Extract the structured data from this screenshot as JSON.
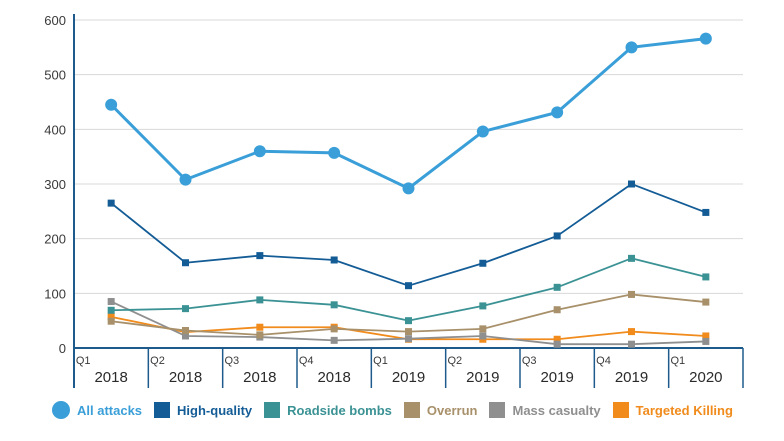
{
  "chart_data": {
    "type": "line",
    "categories": [
      {
        "quarter": "Q1",
        "year": "2018"
      },
      {
        "quarter": "Q2",
        "year": "2018"
      },
      {
        "quarter": "Q3",
        "year": "2018"
      },
      {
        "quarter": "Q4",
        "year": "2018"
      },
      {
        "quarter": "Q1",
        "year": "2019"
      },
      {
        "quarter": "Q2",
        "year": "2019"
      },
      {
        "quarter": "Q3",
        "year": "2019"
      },
      {
        "quarter": "Q4",
        "year": "2019"
      },
      {
        "quarter": "Q1",
        "year": "2020"
      }
    ],
    "yticks": [
      0,
      100,
      200,
      300,
      400,
      500,
      600
    ],
    "ylim": [
      0,
      600
    ],
    "grid": true,
    "legend_position": "bottom",
    "series": [
      {
        "name": "All attacks",
        "color": "#3a9fd8",
        "marker": "circle",
        "values": [
          445,
          308,
          360,
          357,
          292,
          396,
          431,
          550,
          566
        ]
      },
      {
        "name": "High-quality",
        "color": "#135c96",
        "marker": "square",
        "values": [
          265,
          156,
          169,
          161,
          114,
          155,
          205,
          300,
          248
        ]
      },
      {
        "name": "Roadside bombs",
        "color": "#3b9294",
        "marker": "square",
        "values": [
          69,
          72,
          88,
          79,
          50,
          77,
          111,
          164,
          130
        ]
      },
      {
        "name": "Overrun",
        "color": "#a8906a",
        "marker": "square",
        "values": [
          49,
          32,
          24,
          35,
          30,
          35,
          70,
          98,
          84
        ]
      },
      {
        "name": "Mass casualty",
        "color": "#8f8f8f",
        "marker": "square",
        "values": [
          85,
          22,
          20,
          14,
          17,
          22,
          7,
          7,
          12
        ]
      },
      {
        "name": "Targeted Killing",
        "color": "#f08b1c",
        "marker": "square",
        "values": [
          57,
          29,
          38,
          38,
          16,
          16,
          16,
          30,
          22
        ]
      }
    ]
  }
}
